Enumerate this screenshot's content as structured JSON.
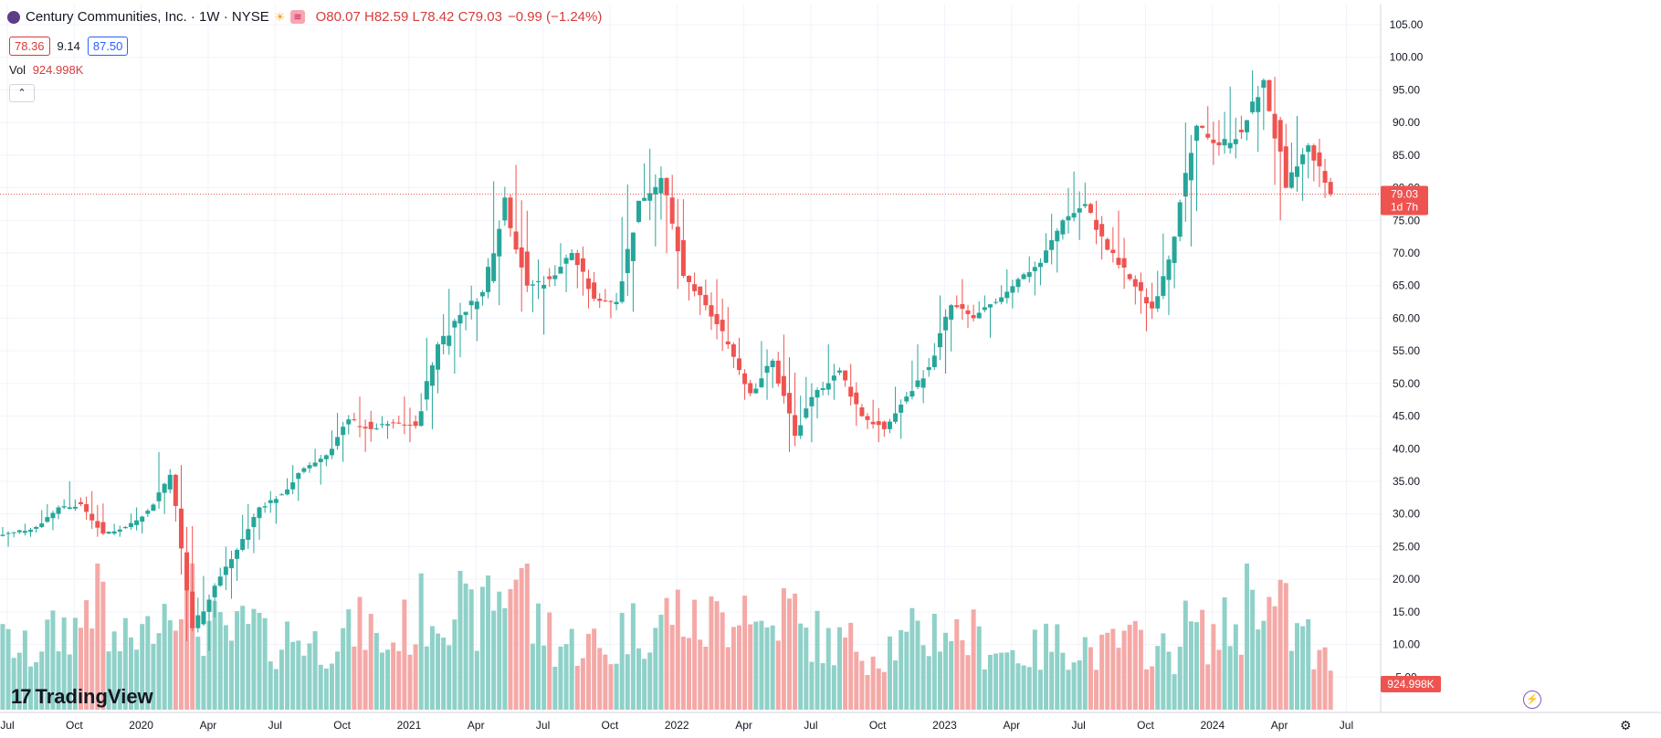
{
  "legend": {
    "title": "Century Communities, Inc. · 1W · NYSE",
    "ohlc": "O80.07 H82.59 L78.42 C79.03",
    "change": "−0.99 (−1.24%)"
  },
  "price_boxes": {
    "bid": "78.36",
    "spread": "9.14",
    "ask": "87.50"
  },
  "volume": {
    "label": "Vol",
    "value": "924.998K"
  },
  "branding": {
    "logo_text": "TradingView"
  },
  "colors": {
    "up": "#26a69a",
    "down": "#ef5350",
    "up_vol": "#8fd1c8",
    "down_vol": "#f4a9a7",
    "grid": "#f0f3fa",
    "axis_text": "#131722",
    "price_badge": "#ef5350"
  },
  "chart_data": {
    "type": "candlestick",
    "timeframe": "1W",
    "ylim": [
      0,
      105
    ],
    "price_axis_ticks": [
      "105.00",
      "100.00",
      "95.00",
      "90.00",
      "85.00",
      "80.00",
      "75.00",
      "70.00",
      "65.00",
      "60.00",
      "55.00",
      "50.00",
      "45.00",
      "40.00",
      "35.00",
      "30.00",
      "25.00",
      "20.00",
      "15.00",
      "10.00",
      "5.00"
    ],
    "time_axis_labels": [
      "Jul",
      "Oct",
      "2020",
      "Apr",
      "Jul",
      "Oct",
      "2021",
      "Apr",
      "Jul",
      "Oct",
      "2022",
      "Apr",
      "Jul",
      "Oct",
      "2023",
      "Apr",
      "Jul",
      "Oct",
      "2024",
      "Apr",
      "Jul"
    ],
    "last_price": "79.03",
    "countdown": "1d 7h",
    "last_volume": "924.998K",
    "candles_monthly": [
      {
        "m": "2019-07",
        "o": 26.5,
        "h": 28.0,
        "l": 25.0,
        "c": 27.2,
        "v": 8
      },
      {
        "m": "2019-08",
        "o": 27.2,
        "h": 28.5,
        "l": 26.5,
        "c": 28.0,
        "v": 7
      },
      {
        "m": "2019-09",
        "o": 28.0,
        "h": 31.5,
        "l": 27.5,
        "c": 31.0,
        "v": 9
      },
      {
        "m": "2019-10",
        "o": 31.0,
        "h": 35.0,
        "l": 30.5,
        "c": 31.5,
        "v": 10
      },
      {
        "m": "2019-11",
        "o": 31.5,
        "h": 33.5,
        "l": 26.5,
        "c": 27.0,
        "v": 14
      },
      {
        "m": "2019-12",
        "o": 27.0,
        "h": 28.5,
        "l": 26.5,
        "c": 28.0,
        "v": 8
      },
      {
        "m": "2020-01",
        "o": 28.0,
        "h": 31.0,
        "l": 27.0,
        "c": 30.5,
        "v": 9
      },
      {
        "m": "2020-02",
        "o": 30.5,
        "h": 39.5,
        "l": 30.0,
        "c": 36.0,
        "v": 13
      },
      {
        "m": "2020-03",
        "o": 36.0,
        "h": 37.5,
        "l": 10.5,
        "c": 12.5,
        "v": 16
      },
      {
        "m": "2020-04",
        "o": 12.5,
        "h": 20.5,
        "l": 9.0,
        "c": 19.0,
        "v": 10
      },
      {
        "m": "2020-05",
        "o": 19.0,
        "h": 25.0,
        "l": 17.0,
        "c": 24.5,
        "v": 9
      },
      {
        "m": "2020-06",
        "o": 24.5,
        "h": 31.5,
        "l": 24.0,
        "c": 31.0,
        "v": 10
      },
      {
        "m": "2020-07",
        "o": 31.0,
        "h": 33.5,
        "l": 28.5,
        "c": 33.0,
        "v": 8
      },
      {
        "m": "2020-08",
        "o": 33.0,
        "h": 37.5,
        "l": 32.0,
        "c": 37.0,
        "v": 9
      },
      {
        "m": "2020-09",
        "o": 37.0,
        "h": 40.0,
        "l": 34.5,
        "c": 39.0,
        "v": 8
      },
      {
        "m": "2020-10",
        "o": 39.0,
        "h": 45.5,
        "l": 38.0,
        "c": 44.5,
        "v": 9
      },
      {
        "m": "2020-11",
        "o": 44.5,
        "h": 48.0,
        "l": 39.5,
        "c": 43.0,
        "v": 10
      },
      {
        "m": "2020-12",
        "o": 43.0,
        "h": 45.0,
        "l": 41.5,
        "c": 44.0,
        "v": 8
      },
      {
        "m": "2021-01",
        "o": 44.0,
        "h": 48.0,
        "l": 41.0,
        "c": 43.5,
        "v": 10
      },
      {
        "m": "2021-02",
        "o": 43.5,
        "h": 57.0,
        "l": 43.0,
        "c": 56.0,
        "v": 12
      },
      {
        "m": "2021-03",
        "o": 56.0,
        "h": 64.5,
        "l": 51.5,
        "c": 60.5,
        "v": 13
      },
      {
        "m": "2021-04",
        "o": 60.5,
        "h": 65.0,
        "l": 56.5,
        "c": 64.0,
        "v": 11
      },
      {
        "m": "2021-05",
        "o": 64.0,
        "h": 81.0,
        "l": 62.0,
        "c": 78.5,
        "v": 14
      },
      {
        "m": "2021-06",
        "o": 78.5,
        "h": 83.5,
        "l": 61.0,
        "c": 65.0,
        "v": 17
      },
      {
        "m": "2021-07",
        "o": 65.0,
        "h": 69.0,
        "l": 57.5,
        "c": 66.0,
        "v": 10
      },
      {
        "m": "2021-08",
        "o": 66.0,
        "h": 71.5,
        "l": 64.0,
        "c": 70.0,
        "v": 8
      },
      {
        "m": "2021-09",
        "o": 70.0,
        "h": 71.0,
        "l": 61.5,
        "c": 63.0,
        "v": 8
      },
      {
        "m": "2021-10",
        "o": 63.0,
        "h": 64.5,
        "l": 60.0,
        "c": 62.5,
        "v": 7
      },
      {
        "m": "2021-11",
        "o": 62.5,
        "h": 80.5,
        "l": 61.0,
        "c": 78.0,
        "v": 10
      },
      {
        "m": "2021-12",
        "o": 78.0,
        "h": 86.0,
        "l": 71.0,
        "c": 81.5,
        "v": 10
      },
      {
        "m": "2022-01",
        "o": 81.5,
        "h": 82.0,
        "l": 64.5,
        "c": 66.5,
        "v": 12
      },
      {
        "m": "2022-02",
        "o": 66.5,
        "h": 67.0,
        "l": 60.5,
        "c": 62.0,
        "v": 10
      },
      {
        "m": "2022-03",
        "o": 62.0,
        "h": 66.0,
        "l": 55.0,
        "c": 56.0,
        "v": 11
      },
      {
        "m": "2022-04",
        "o": 56.0,
        "h": 57.0,
        "l": 47.5,
        "c": 48.5,
        "v": 14
      },
      {
        "m": "2022-05",
        "o": 48.5,
        "h": 56.5,
        "l": 47.5,
        "c": 53.5,
        "v": 10
      },
      {
        "m": "2022-06",
        "o": 53.5,
        "h": 57.5,
        "l": 39.5,
        "c": 42.0,
        "v": 12
      },
      {
        "m": "2022-07",
        "o": 42.0,
        "h": 51.0,
        "l": 41.0,
        "c": 49.0,
        "v": 9
      },
      {
        "m": "2022-08",
        "o": 49.0,
        "h": 56.0,
        "l": 47.5,
        "c": 52.0,
        "v": 8
      },
      {
        "m": "2022-09",
        "o": 52.0,
        "h": 53.0,
        "l": 43.5,
        "c": 45.0,
        "v": 8
      },
      {
        "m": "2022-10",
        "o": 45.0,
        "h": 47.5,
        "l": 41.0,
        "c": 43.0,
        "v": 7
      },
      {
        "m": "2022-11",
        "o": 43.0,
        "h": 49.5,
        "l": 41.5,
        "c": 48.0,
        "v": 8
      },
      {
        "m": "2022-12",
        "o": 48.0,
        "h": 56.0,
        "l": 47.0,
        "c": 52.5,
        "v": 9
      },
      {
        "m": "2023-01",
        "o": 52.5,
        "h": 63.5,
        "l": 51.5,
        "c": 62.0,
        "v": 10
      },
      {
        "m": "2023-02",
        "o": 62.0,
        "h": 66.0,
        "l": 58.5,
        "c": 60.0,
        "v": 9
      },
      {
        "m": "2023-03",
        "o": 60.0,
        "h": 63.5,
        "l": 57.0,
        "c": 62.5,
        "v": 8
      },
      {
        "m": "2023-04",
        "o": 62.5,
        "h": 67.5,
        "l": 61.5,
        "c": 66.0,
        "v": 7
      },
      {
        "m": "2023-05",
        "o": 66.0,
        "h": 69.5,
        "l": 63.5,
        "c": 68.5,
        "v": 7
      },
      {
        "m": "2023-06",
        "o": 68.5,
        "h": 76.0,
        "l": 67.0,
        "c": 75.0,
        "v": 8
      },
      {
        "m": "2023-07",
        "o": 75.0,
        "h": 82.5,
        "l": 72.0,
        "c": 77.5,
        "v": 8
      },
      {
        "m": "2023-08",
        "o": 77.5,
        "h": 78.0,
        "l": 69.0,
        "c": 70.5,
        "v": 7
      },
      {
        "m": "2023-09",
        "o": 70.5,
        "h": 76.5,
        "l": 64.5,
        "c": 66.0,
        "v": 8
      },
      {
        "m": "2023-10",
        "o": 66.0,
        "h": 67.0,
        "l": 58.0,
        "c": 61.5,
        "v": 8
      },
      {
        "m": "2023-11",
        "o": 61.5,
        "h": 73.0,
        "l": 60.5,
        "c": 72.5,
        "v": 7
      },
      {
        "m": "2023-12",
        "o": 72.5,
        "h": 90.0,
        "l": 71.0,
        "c": 89.5,
        "v": 10
      },
      {
        "m": "2024-01",
        "o": 89.5,
        "h": 92.5,
        "l": 83.5,
        "c": 86.5,
        "v": 9
      },
      {
        "m": "2024-02",
        "o": 86.5,
        "h": 95.5,
        "l": 84.5,
        "c": 88.5,
        "v": 10
      },
      {
        "m": "2024-03",
        "o": 88.5,
        "h": 98.0,
        "l": 85.5,
        "c": 96.5,
        "v": 15
      },
      {
        "m": "2024-04",
        "o": 96.5,
        "h": 97.0,
        "l": 75.0,
        "c": 80.0,
        "v": 12
      },
      {
        "m": "2024-05",
        "o": 80.0,
        "h": 91.0,
        "l": 78.0,
        "c": 86.5,
        "v": 9
      },
      {
        "m": "2024-06",
        "o": 86.5,
        "h": 87.5,
        "l": 78.42,
        "c": 79.03,
        "v": 6
      }
    ]
  }
}
